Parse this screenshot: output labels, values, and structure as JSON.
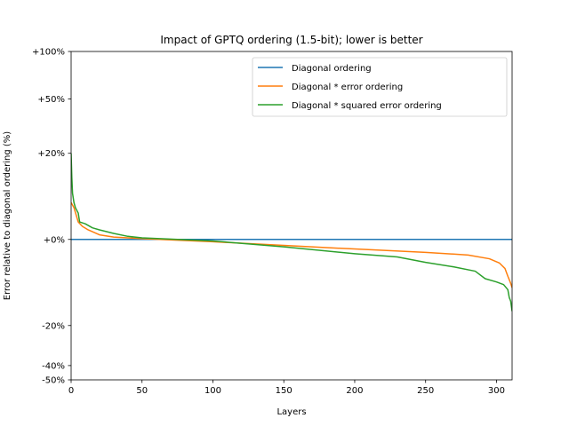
{
  "chart_data": {
    "type": "line",
    "title": "Impact of GPTQ ordering (1.5-bit); lower is better",
    "xlabel": "Layers",
    "ylabel": "Error relative to diagonal ordering (%)",
    "xlim": [
      0,
      311
    ],
    "ylim": [
      -50,
      100
    ],
    "y_scale": "symlog",
    "x_ticks": [
      0,
      50,
      100,
      150,
      200,
      250,
      300
    ],
    "x_tick_labels": [
      "0",
      "50",
      "100",
      "150",
      "200",
      "250",
      "300"
    ],
    "y_ticks": [
      100,
      50,
      20,
      0,
      -20,
      -40,
      -50
    ],
    "y_tick_labels": [
      "+100%",
      "+50%",
      "+20%",
      "+0%",
      "-20%",
      "-40%",
      "-50%"
    ],
    "grid": false,
    "legend_position": "top-right",
    "series": [
      {
        "name": "Diagonal ordering",
        "color": "#1f77b4",
        "x": [
          0,
          311
        ],
        "y": [
          0,
          0
        ]
      },
      {
        "name": "Diagonal * error ordering",
        "color": "#ff7f0e",
        "x": [
          0,
          2,
          5,
          8,
          12,
          20,
          30,
          50,
          100,
          150,
          200,
          250,
          280,
          295,
          302,
          306,
          308,
          310,
          311
        ],
        "y": [
          6,
          5,
          2.5,
          1.8,
          1.3,
          0.6,
          0.3,
          0.1,
          -0.3,
          -0.8,
          -1.3,
          -1.8,
          -2.2,
          -2.8,
          -3.5,
          -4.5,
          -6,
          -7.5,
          -8.5
        ]
      },
      {
        "name": "Diagonal * squared error ordering",
        "color": "#2ca02c",
        "x": [
          0,
          0.5,
          1,
          2,
          3,
          5,
          6,
          10,
          15,
          20,
          30,
          40,
          50,
          100,
          150,
          200,
          230,
          250,
          270,
          285,
          292,
          300,
          305,
          308,
          309,
          310,
          311
        ],
        "y": [
          20,
          12,
          8,
          6,
          5,
          4,
          2.5,
          2.2,
          1.6,
          1.3,
          0.8,
          0.4,
          0.2,
          -0.2,
          -1,
          -2,
          -2.5,
          -3.4,
          -4.2,
          -5,
          -6.5,
          -7.2,
          -7.8,
          -9,
          -11,
          -12,
          -15
        ]
      }
    ]
  }
}
